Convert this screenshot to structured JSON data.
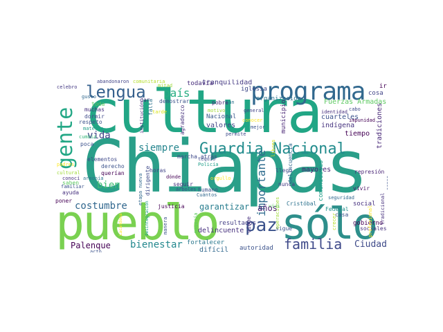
{
  "words": [
    {
      "text": "Chiapas",
      "color": "#2a9f89"
    },
    {
      "text": "cultura",
      "color": "#21a685"
    },
    {
      "text": "pueblo",
      "color": "#7ad151"
    },
    {
      "text": "sólo",
      "color": "#2e8f8b"
    },
    {
      "text": "programa",
      "color": "#31688e"
    },
    {
      "text": "Guardia Nacional",
      "color": "#228c8d"
    },
    {
      "text": "gente",
      "color": "#22a785"
    },
    {
      "text": "lengua",
      "color": "#35608d"
    },
    {
      "text": "paz",
      "color": "#3b528b"
    },
    {
      "text": "familia",
      "color": "#3e4989"
    },
    {
      "text": "siempre",
      "color": "#25858e"
    },
    {
      "text": "importante",
      "color": "#2f6c8e"
    },
    {
      "text": "país",
      "color": "#27ad81"
    },
    {
      "text": "vida",
      "color": "#414487"
    },
    {
      "text": "bien",
      "color": "#3fbc73"
    },
    {
      "text": "costumbre",
      "color": "#31678e"
    },
    {
      "text": "bienestar",
      "color": "#23888e"
    },
    {
      "text": "Ciudad",
      "color": "#3e4a89"
    },
    {
      "text": "Palenque",
      "color": "#440154"
    },
    {
      "text": "garantizar",
      "color": "#287d8e"
    },
    {
      "text": "años",
      "color": "#481c6e"
    },
    {
      "text": "Fuerzas Armadas",
      "color": "#5ec962"
    },
    {
      "text": "tradiciones",
      "color": "#482878"
    },
    {
      "text": "cuarteles",
      "color": "#3b528b"
    },
    {
      "text": "indígena",
      "color": "#46337f"
    },
    {
      "text": "tiempo",
      "color": "#440154"
    },
    {
      "text": "valores",
      "color": "#414487"
    },
    {
      "text": "Nacional",
      "color": "#38588c"
    },
    {
      "text": "iglesia",
      "color": "#3e4989"
    },
    {
      "text": "tranquilidad",
      "color": "#443983"
    },
    {
      "text": "todavía",
      "color": "#472d7b"
    },
    {
      "text": "organización",
      "color": "#2c728e"
    },
    {
      "text": "cosa",
      "color": "#414487"
    },
    {
      "text": "ir",
      "color": "#440154"
    },
    {
      "text": "municipio",
      "color": "#482475"
    },
    {
      "text": "social",
      "color": "#46307e"
    },
    {
      "text": "mayores",
      "color": "#482475"
    },
    {
      "text": "delincuente",
      "color": "#46307e"
    },
    {
      "text": "resultados",
      "color": "#433e85"
    },
    {
      "text": "difícil",
      "color": "#31688e"
    },
    {
      "text": "fortalecer",
      "color": "#2a788e"
    },
    {
      "text": "autoridad",
      "color": "#3b528b"
    },
    {
      "text": "gobierno",
      "color": "#440154"
    },
    {
      "text": "comunidades",
      "color": "#1f9e89"
    },
    {
      "text": "represión",
      "color": "#482475"
    },
    {
      "text": "vivir",
      "color": "#481467"
    },
    {
      "text": "Federal",
      "color": "#21918c"
    },
    {
      "text": "casa",
      "color": "#3b528b"
    },
    {
      "text": "sociales",
      "color": "#46327e"
    },
    {
      "text": "apoyo",
      "color": "#35b779"
    },
    {
      "text": "acoso",
      "color": "#3b528b"
    },
    {
      "text": "Cristóbal",
      "color": "#2c728e"
    },
    {
      "text": "sigue",
      "color": "#3b528b"
    },
    {
      "text": "viene",
      "color": "#46307e"
    },
    {
      "text": "modo",
      "color": "#481a6c"
    },
    {
      "text": "mantienen",
      "color": "#433e85"
    },
    {
      "text": "delincuencia",
      "color": "#31688e"
    },
    {
      "text": "llegó",
      "color": "#3e4989"
    },
    {
      "text": "nunca",
      "color": "#443a83"
    },
    {
      "text": "libres",
      "color": "#d8e219"
    },
    {
      "text": "operaciones",
      "color": "#a0da39"
    },
    {
      "text": "humano",
      "color": "#3b528b"
    },
    {
      "text": "seguir",
      "color": "#46307e"
    },
    {
      "text": "horas",
      "color": "#414487"
    },
    {
      "text": "dirigente",
      "color": "#3e4989"
    },
    {
      "text": "etapa nueva",
      "color": "#31688e"
    },
    {
      "text": "justicia",
      "color": "#440154"
    },
    {
      "text": "manera",
      "color": "#3b528b"
    },
    {
      "text": "Policía",
      "color": "#1f9e89"
    },
    {
      "text": "pobre",
      "color": "#482475"
    },
    {
      "text": "falta",
      "color": "#2c728e"
    },
    {
      "text": "agradezco",
      "color": "#46327e"
    },
    {
      "text": "marcha atrás",
      "color": "#3e4989"
    },
    {
      "text": "derecho",
      "color": "#3b528b"
    },
    {
      "text": "querían",
      "color": "#440154"
    },
    {
      "text": "elementos",
      "color": "#3e4989"
    },
    {
      "text": "saben",
      "color": "#5ec962"
    },
    {
      "text": "ayuda",
      "color": "#46307e"
    },
    {
      "text": "poner",
      "color": "#440154"
    },
    {
      "text": "poca",
      "color": "#3b528b"
    },
    {
      "text": "muchas",
      "color": "#46307e"
    },
    {
      "text": "dormir",
      "color": "#3e4989"
    },
    {
      "text": "respeto",
      "color": "#3b528b"
    },
    {
      "text": "toda",
      "color": "#5ec962"
    },
    {
      "text": "demostrar",
      "color": "#3b528b"
    },
    {
      "text": "dar",
      "color": "#46307e"
    },
    {
      "text": "mitad",
      "color": "#a0da39"
    },
    {
      "text": "abandonaron",
      "color": "#414487"
    },
    {
      "text": "comunitaria",
      "color": "#b5de2b"
    },
    {
      "text": "celebro",
      "color": "#443983"
    },
    {
      "text": "gusto",
      "color": "#31688e"
    },
    {
      "text": "materia",
      "color": "#1f9e89"
    },
    {
      "text": "cumbia",
      "color": "#35b779"
    },
    {
      "text": "cultural",
      "color": "#a0da39"
    },
    {
      "text": "conocí",
      "color": "#46307e"
    },
    {
      "text": "padres",
      "color": "#fde725"
    },
    {
      "text": "familiar",
      "color": "#3b528b"
    },
    {
      "text": "armonía",
      "color": "#2c728e"
    },
    {
      "text": "tequio",
      "color": "#3e4989"
    },
    {
      "text": "dónde",
      "color": "#440154"
    },
    {
      "text": "árboles",
      "color": "#3b528b"
    },
    {
      "text": "orgullo",
      "color": "#fde725"
    },
    {
      "text": "Cuántos",
      "color": "#31688e"
    },
    {
      "text": "mayoría",
      "color": "#5ec962"
    },
    {
      "text": "desintegración",
      "color": "#1f9e89"
    },
    {
      "text": "Lacandona",
      "color": "#fde725"
    },
    {
      "text": "acto",
      "color": "#3b528b"
    },
    {
      "text": "institución",
      "color": "#46307e"
    },
    {
      "text": "tarde",
      "color": "#d8e219"
    },
    {
      "text": "motivo",
      "color": "#a0da39"
    },
    {
      "text": "San",
      "color": "#2c728e"
    },
    {
      "text": "general",
      "color": "#414487"
    },
    {
      "text": "conocer",
      "color": "#fde725"
    },
    {
      "text": "mejor",
      "color": "#3b528b"
    },
    {
      "text": "permite",
      "color": "#3e4989"
    },
    {
      "text": "vivi",
      "color": "#5ec962"
    },
    {
      "text": "identidad",
      "color": "#46307e"
    },
    {
      "text": "seguridad",
      "color": "#31688e"
    },
    {
      "text": "impunidad",
      "color": "#440154"
    },
    {
      "text": "cabo",
      "color": "#3e4989"
    },
    {
      "text": "tradicional",
      "color": "#46307e"
    },
    {
      "text": "profesional",
      "color": "#fde725"
    },
    {
      "text": "crecer",
      "color": "#b5de2b"
    }
  ]
}
